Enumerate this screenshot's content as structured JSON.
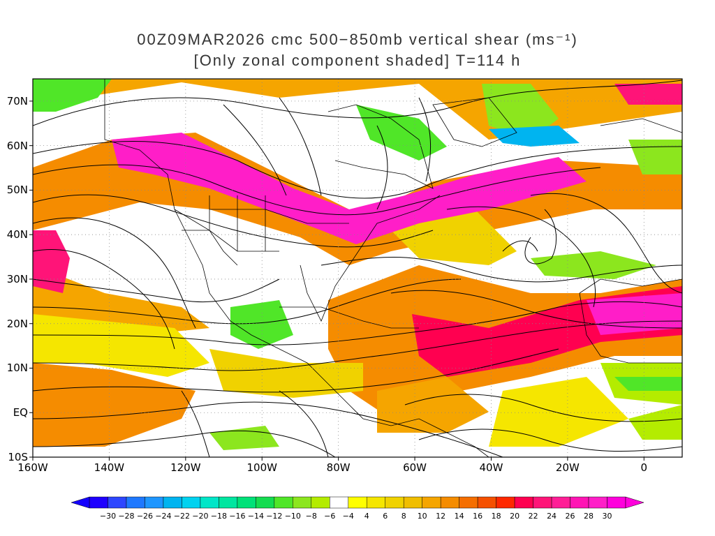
{
  "title": {
    "line1": "00Z09MAR2026 cmc 500−850mb vertical shear (ms⁻¹)",
    "line2": "[Only zonal component shaded] T=114 h"
  },
  "map": {
    "lat_labels": [
      "70N",
      "60N",
      "50N",
      "40N",
      "30N",
      "20N",
      "10N",
      "EQ",
      "10S"
    ],
    "lon_labels": [
      "160W",
      "140W",
      "120W",
      "100W",
      "80W",
      "60W",
      "40W",
      "20W",
      "0"
    ],
    "lat_range": [
      -10,
      75
    ],
    "lon_range": [
      -160,
      10
    ],
    "grid": "dotted"
  },
  "colorbar": {
    "labels": [
      "−30",
      "−28",
      "−26",
      "−24",
      "−22",
      "−20",
      "−18",
      "−16",
      "−14",
      "−12",
      "−10",
      "−8",
      "−6",
      "−4",
      "4",
      "6",
      "8",
      "10",
      "12",
      "14",
      "16",
      "18",
      "20",
      "22",
      "24",
      "26",
      "28",
      "30"
    ],
    "colors": [
      "#1e00ff",
      "#2d46ff",
      "#1e78ff",
      "#1e96ff",
      "#00b4f0",
      "#00d2f0",
      "#00e6c8",
      "#00e6a0",
      "#00e178",
      "#14dc50",
      "#50e628",
      "#8ce61e",
      "#b4ec00",
      "#ffffff",
      "#ffff00",
      "#f5e600",
      "#f0d200",
      "#f0be00",
      "#f5a500",
      "#f58c00",
      "#f56e00",
      "#f55000",
      "#ff2800",
      "#ff0050",
      "#ff1478",
      "#ff1e96",
      "#ff14b4",
      "#ff1ec8",
      "#ff00dc"
    ]
  },
  "legend": {
    "units": "ms⁻¹"
  }
}
